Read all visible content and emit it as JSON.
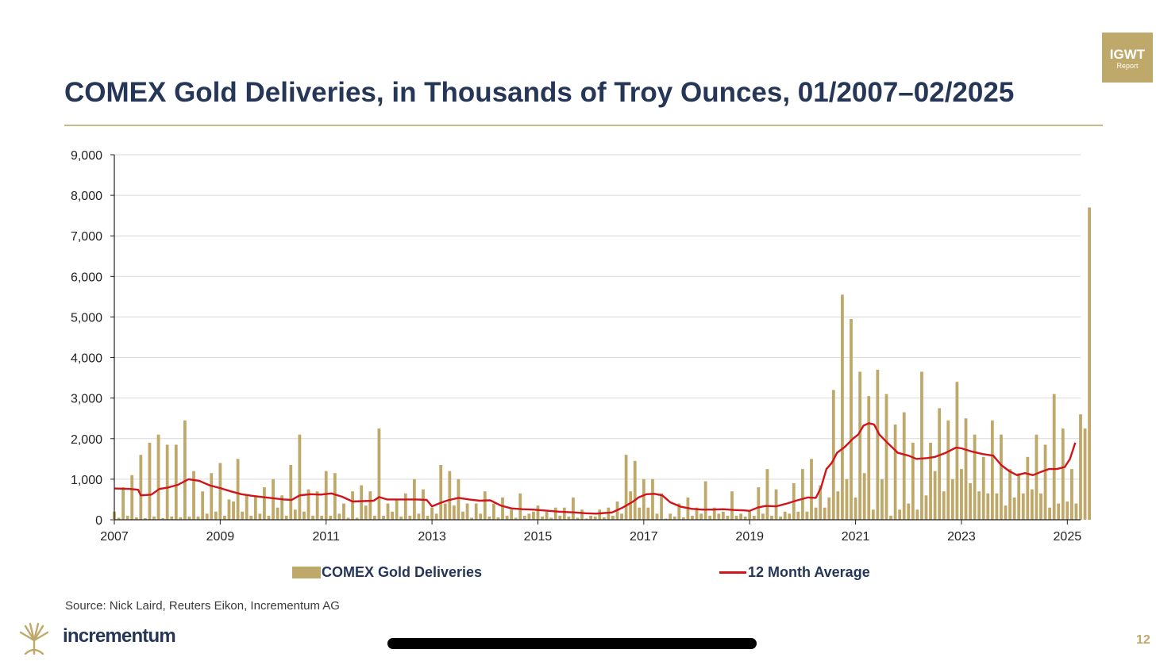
{
  "badge": {
    "line1": "IGWT",
    "line2": "Report"
  },
  "page_title": "COMEX Gold Deliveries, in Thousands of Troy Ounces, 01/2007–02/2025",
  "source": "Source: Nick Laird, Reuters Eikon, Incrementum AG",
  "logo_text": "incrementum",
  "page_number": "12",
  "colors": {
    "bar": "#bfa96a",
    "line": "#d0141a",
    "title": "#253657",
    "accent": "#bfa96a"
  },
  "chart_data": {
    "type": "bar",
    "title": "COMEX Gold Deliveries, in Thousands of Troy Ounces, 01/2007–02/2025",
    "xlabel": "",
    "ylabel": "",
    "ylim": [
      0,
      9000
    ],
    "xlim": [
      2007.0,
      2025.25
    ],
    "grid": true,
    "legend_position": "bottom",
    "y_ticks": [
      "0",
      "1,000",
      "2,000",
      "3,000",
      "4,000",
      "5,000",
      "6,000",
      "7,000",
      "8,000",
      "9,000"
    ],
    "x_ticks": [
      "2007",
      "2009",
      "2011",
      "2013",
      "2015",
      "2017",
      "2019",
      "2021",
      "2023",
      "2025"
    ],
    "series": [
      {
        "name": "COMEX Gold Deliveries",
        "type": "bar",
        "start": "2007-01",
        "values": [
          200,
          50,
          800,
          100,
          1100,
          60,
          1600,
          40,
          1900,
          80,
          2100,
          40,
          1850,
          80,
          1850,
          60,
          2450,
          80,
          1200,
          80,
          700,
          150,
          1150,
          200,
          1400,
          100,
          500,
          450,
          1500,
          200,
          600,
          100,
          600,
          150,
          800,
          100,
          1000,
          300,
          600,
          100,
          1350,
          250,
          2100,
          200,
          750,
          100,
          700,
          100,
          1200,
          100,
          1150,
          150,
          400,
          50,
          700,
          50,
          850,
          350,
          700,
          100,
          2250,
          100,
          400,
          200,
          500,
          80,
          650,
          100,
          1000,
          150,
          750,
          100,
          300,
          150,
          1350,
          400,
          1200,
          350,
          1000,
          200,
          400,
          50,
          400,
          150,
          700,
          80,
          400,
          60,
          550,
          100,
          250,
          50,
          650,
          100,
          150,
          200,
          350,
          80,
          200,
          50,
          300,
          100,
          300,
          80,
          550,
          50,
          250,
          30,
          100,
          80,
          250,
          60,
          300,
          100,
          450,
          150,
          1600,
          700,
          1450,
          300,
          1000,
          300,
          1000,
          150,
          650,
          30,
          150,
          80,
          400,
          60,
          550,
          100,
          300,
          150,
          950,
          100,
          300,
          150,
          200,
          100,
          700,
          100,
          150,
          80,
          200,
          100,
          800,
          150,
          1250,
          100,
          750,
          80,
          200,
          150,
          900,
          200,
          1250,
          200,
          1500,
          300,
          850,
          300,
          550,
          3200,
          700,
          5550,
          1000,
          4950,
          550,
          3650,
          1150,
          3050,
          250,
          3700,
          1000,
          3100,
          100,
          2350,
          250,
          2650,
          400,
          1900,
          250,
          3650,
          600,
          1900,
          1200,
          2750,
          700,
          2450,
          1000,
          3400,
          1250,
          2500,
          900,
          2100,
          700,
          1550,
          650,
          2450,
          650,
          2100,
          350,
          1250,
          550,
          1150,
          650,
          1550,
          750,
          2100,
          650,
          1850,
          300,
          3100,
          400,
          2250,
          450,
          1250,
          400,
          2600,
          2250,
          7700
        ]
      },
      {
        "name": "12 Month Average",
        "type": "line",
        "points": [
          [
            2007.0,
            770
          ],
          [
            2007.3,
            760
          ],
          [
            2007.45,
            740
          ],
          [
            2007.5,
            600
          ],
          [
            2007.7,
            620
          ],
          [
            2007.85,
            760
          ],
          [
            2008.0,
            790
          ],
          [
            2008.2,
            860
          ],
          [
            2008.4,
            1000
          ],
          [
            2008.6,
            960
          ],
          [
            2008.8,
            850
          ],
          [
            2009.0,
            780
          ],
          [
            2009.2,
            700
          ],
          [
            2009.4,
            630
          ],
          [
            2009.6,
            590
          ],
          [
            2009.8,
            560
          ],
          [
            2010.0,
            530
          ],
          [
            2010.2,
            500
          ],
          [
            2010.35,
            490
          ],
          [
            2010.5,
            600
          ],
          [
            2010.7,
            630
          ],
          [
            2010.9,
            620
          ],
          [
            2011.1,
            650
          ],
          [
            2011.3,
            570
          ],
          [
            2011.5,
            450
          ],
          [
            2011.7,
            460
          ],
          [
            2011.9,
            470
          ],
          [
            2012.0,
            560
          ],
          [
            2012.15,
            500
          ],
          [
            2012.4,
            500
          ],
          [
            2012.7,
            500
          ],
          [
            2012.9,
            490
          ],
          [
            2013.0,
            330
          ],
          [
            2013.15,
            410
          ],
          [
            2013.3,
            480
          ],
          [
            2013.5,
            540
          ],
          [
            2013.7,
            500
          ],
          [
            2013.9,
            470
          ],
          [
            2014.1,
            480
          ],
          [
            2014.3,
            350
          ],
          [
            2014.5,
            280
          ],
          [
            2014.7,
            260
          ],
          [
            2014.9,
            250
          ],
          [
            2015.1,
            230
          ],
          [
            2015.4,
            200
          ],
          [
            2015.7,
            180
          ],
          [
            2015.9,
            160
          ],
          [
            2016.1,
            150
          ],
          [
            2016.4,
            180
          ],
          [
            2016.6,
            300
          ],
          [
            2016.8,
            450
          ],
          [
            2016.9,
            550
          ],
          [
            2017.05,
            630
          ],
          [
            2017.2,
            640
          ],
          [
            2017.35,
            600
          ],
          [
            2017.5,
            430
          ],
          [
            2017.7,
            320
          ],
          [
            2017.9,
            270
          ],
          [
            2018.1,
            250
          ],
          [
            2018.3,
            250
          ],
          [
            2018.5,
            260
          ],
          [
            2018.7,
            240
          ],
          [
            2018.9,
            230
          ],
          [
            2019.0,
            220
          ],
          [
            2019.15,
            300
          ],
          [
            2019.3,
            340
          ],
          [
            2019.5,
            330
          ],
          [
            2019.7,
            400
          ],
          [
            2019.9,
            480
          ],
          [
            2020.1,
            550
          ],
          [
            2020.25,
            540
          ],
          [
            2020.35,
            800
          ],
          [
            2020.45,
            1250
          ],
          [
            2020.55,
            1400
          ],
          [
            2020.65,
            1650
          ],
          [
            2020.8,
            1800
          ],
          [
            2020.95,
            2000
          ],
          [
            2021.05,
            2100
          ],
          [
            2021.15,
            2320
          ],
          [
            2021.25,
            2380
          ],
          [
            2021.35,
            2350
          ],
          [
            2021.45,
            2100
          ],
          [
            2021.6,
            1900
          ],
          [
            2021.8,
            1650
          ],
          [
            2022.0,
            1580
          ],
          [
            2022.15,
            1500
          ],
          [
            2022.35,
            1520
          ],
          [
            2022.5,
            1550
          ],
          [
            2022.7,
            1650
          ],
          [
            2022.9,
            1780
          ],
          [
            2023.0,
            1760
          ],
          [
            2023.2,
            1680
          ],
          [
            2023.4,
            1620
          ],
          [
            2023.6,
            1580
          ],
          [
            2023.75,
            1350
          ],
          [
            2023.9,
            1200
          ],
          [
            2024.05,
            1100
          ],
          [
            2024.2,
            1150
          ],
          [
            2024.35,
            1100
          ],
          [
            2024.5,
            1180
          ],
          [
            2024.65,
            1250
          ],
          [
            2024.8,
            1250
          ],
          [
            2024.95,
            1300
          ],
          [
            2025.05,
            1500
          ],
          [
            2025.15,
            1900
          ]
        ]
      }
    ]
  }
}
